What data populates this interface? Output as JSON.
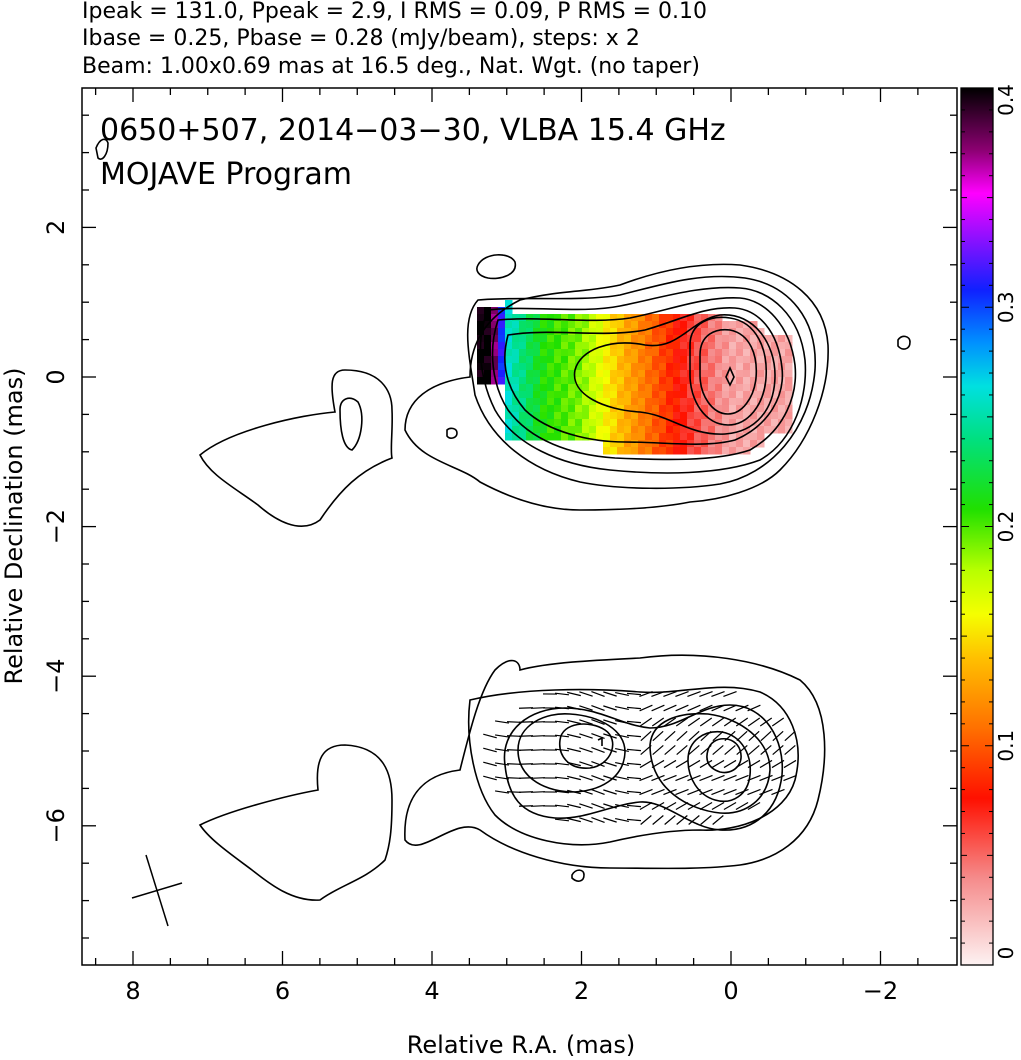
{
  "header": {
    "line1": "Ipeak = 131.0, Ppeak = 2.9, I RMS = 0.09, P RMS = 0.10",
    "line2": "Ibase = 0.25, Pbase = 0.28 (mJy/beam), steps: x 2",
    "line3": "Beam: 1.00x0.69 mas at 16.5 deg., Nat. Wgt. (no taper)"
  },
  "chart_data": {
    "type": "heatmap",
    "title": "0650+507, 2014−03−30, VLBA 15.4 GHz",
    "subtitle": "MOJAVE Program",
    "xlabel": "Relative R.A. (mas)",
    "ylabel": "Relative Declination (mas)",
    "xlim": [
      8.7,
      -3.0
    ],
    "ylim_top_panel": [
      4.0,
      -2.5
    ],
    "ylim_bottom_panel": [
      -2.5,
      -7.8
    ],
    "bottom_panel_offset": -5.0,
    "x_ticks": [
      "8",
      "6",
      "4",
      "2",
      "0",
      "−2"
    ],
    "x_tick_values": [
      8,
      6,
      4,
      2,
      0,
      -2
    ],
    "y_ticks": [
      "2",
      "0",
      "−2",
      "−4",
      "−6"
    ],
    "y_tick_values": [
      2,
      0,
      -2,
      -4,
      -6
    ],
    "colorbar": {
      "range": [
        0,
        0.4
      ],
      "ticks": [
        "0",
        "0.1",
        "0.2",
        "0.3",
        "0.4"
      ],
      "tick_values": [
        0,
        0.1,
        0.2,
        0.3,
        0.4
      ]
    },
    "beam": {
      "major_mas": 1.0,
      "minor_mas": 0.69,
      "pa_deg": 16.5
    },
    "peak_position": [
      0,
      0
    ],
    "colormap_samples": [
      {
        "x": 0.0,
        "value": 0.03
      },
      {
        "x": 0.5,
        "value": 0.06
      },
      {
        "x": 1.0,
        "value": 0.1
      },
      {
        "x": 1.5,
        "value": 0.14
      },
      {
        "x": 2.0,
        "value": 0.19
      },
      {
        "x": 2.5,
        "value": 0.21
      },
      {
        "x": 3.0,
        "value": 0.26
      },
      {
        "x": 3.2,
        "value": 0.4
      }
    ],
    "grid": false
  }
}
